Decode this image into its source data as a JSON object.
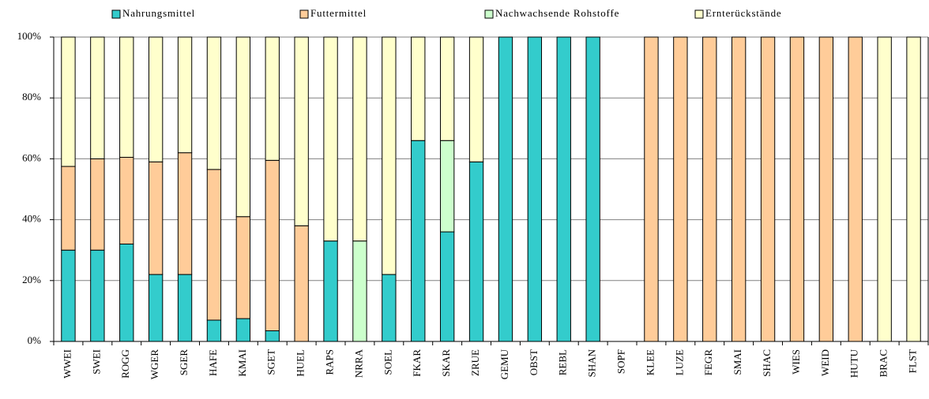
{
  "chart_data": {
    "type": "stacked_bar",
    "categories": [
      "WWEI",
      "SWEI",
      "ROGG",
      "WGER",
      "SGER",
      "HAFE",
      "KMAI",
      "SGET",
      "HUEL",
      "RAPS",
      "NRRA",
      "SOEL",
      "FKAR",
      "SKAR",
      "ZRUE",
      "GEMU",
      "OBST",
      "REBL",
      "SHAN",
      "SOPF",
      "KLEE",
      "LUZE",
      "FEGR",
      "SMAI",
      "SHAC",
      "WIES",
      "WEID",
      "HUTU",
      "BRAC",
      "FLST"
    ],
    "series": [
      {
        "name": "Nahrungsmittel",
        "color": "#33cccc",
        "values": [
          30,
          30,
          32,
          22,
          22,
          7,
          7.5,
          3.5,
          0,
          33,
          0,
          22,
          66,
          36,
          59,
          100,
          100,
          100,
          100,
          0,
          0,
          0,
          0,
          0,
          0,
          0,
          0,
          0,
          0,
          0
        ]
      },
      {
        "name": "Futtermittel",
        "color": "#ffcc99",
        "values": [
          27.5,
          30,
          28.5,
          37,
          40,
          49.5,
          33.5,
          56,
          38,
          0,
          0,
          0,
          0,
          0,
          0,
          0,
          0,
          0,
          0,
          0,
          100,
          100,
          100,
          100,
          100,
          100,
          100,
          100,
          0,
          0
        ]
      },
      {
        "name": "Nachwachsende Rohstoffe",
        "color": "#ccffcc",
        "values": [
          0,
          0,
          0,
          0,
          0,
          0,
          0,
          0,
          0,
          0,
          33,
          0,
          0,
          30,
          0,
          0,
          0,
          0,
          0,
          0,
          0,
          0,
          0,
          0,
          0,
          0,
          0,
          0,
          0,
          0
        ]
      },
      {
        "name": "Ernterückstände",
        "color": "#ffffcc",
        "values": [
          42.5,
          40,
          39.5,
          41,
          38,
          43.5,
          59,
          40.5,
          62,
          67,
          67,
          78,
          34,
          34,
          41,
          0,
          0,
          0,
          0,
          0,
          0,
          0,
          0,
          0,
          0,
          0,
          0,
          0,
          100,
          100
        ]
      }
    ],
    "ylim": [
      0,
      100
    ],
    "yticks": [
      {
        "value": 0,
        "label": "0%"
      },
      {
        "value": 20,
        "label": "20%"
      },
      {
        "value": 40,
        "label": "40%"
      },
      {
        "value": 60,
        "label": "60%"
      },
      {
        "value": 80,
        "label": "80%"
      },
      {
        "value": 100,
        "label": "100%"
      }
    ],
    "grid": true
  }
}
